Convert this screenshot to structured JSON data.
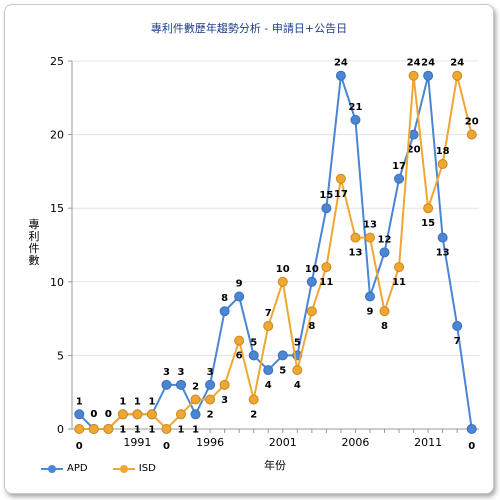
{
  "chart_data": {
    "type": "line",
    "title": "專利件數歷年趨勢分析 - 申請日+公告日",
    "xlabel": "年份",
    "ylabel": "專利件數",
    "x": [
      1987,
      1988,
      1989,
      1990,
      1991,
      1992,
      1993,
      1994,
      1995,
      1996,
      1997,
      1998,
      1999,
      2000,
      2001,
      2002,
      2003,
      2004,
      2005,
      2006,
      2007,
      2008,
      2009,
      2010,
      2011,
      2012,
      2013,
      2014
    ],
    "x_tick_labels": [
      "1991",
      "1996",
      "2001",
      "2006",
      "2011"
    ],
    "y_ticks": [
      0,
      5,
      10,
      15,
      20,
      25
    ],
    "xlim": [
      1986.5,
      2014.5
    ],
    "ylim": [
      0,
      25
    ],
    "grid": "horizontal",
    "legend_position": "bottom-left",
    "series": [
      {
        "name": "APD",
        "color": "#4a86d4",
        "values": [
          1,
          0,
          0,
          1,
          1,
          1,
          3,
          3,
          1,
          3,
          8,
          9,
          5,
          4,
          5,
          5,
          10,
          15,
          24,
          21,
          9,
          12,
          17,
          20,
          24,
          13,
          7,
          0
        ]
      },
      {
        "name": "ISD",
        "color": "#f0a732",
        "values": [
          0,
          0,
          0,
          1,
          1,
          1,
          0,
          1,
          2,
          2,
          3,
          6,
          2,
          7,
          10,
          4,
          8,
          11,
          17,
          13,
          13,
          8,
          11,
          24,
          15,
          18,
          24,
          20
        ]
      }
    ]
  }
}
